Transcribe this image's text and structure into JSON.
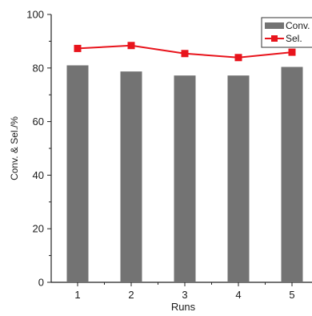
{
  "chart_data": {
    "type": "bar",
    "title": "",
    "xlabel": "Runs",
    "ylabel": "Conv. & Sel./%",
    "categories": [
      "1",
      "2",
      "3",
      "4",
      "5"
    ],
    "ylim": [
      0,
      100
    ],
    "yticks": [
      0,
      20,
      40,
      60,
      80,
      100
    ],
    "grid": false,
    "legend_position": "top-right",
    "series": [
      {
        "name": "Conv.",
        "type": "bar",
        "color": "#737373",
        "values": [
          81,
          78.7,
          77.2,
          77.2,
          80.4
        ]
      },
      {
        "name": "Sel.",
        "type": "line",
        "color": "#e8141c",
        "values": [
          87.3,
          88.4,
          85.4,
          83.9,
          85.9
        ]
      }
    ]
  }
}
